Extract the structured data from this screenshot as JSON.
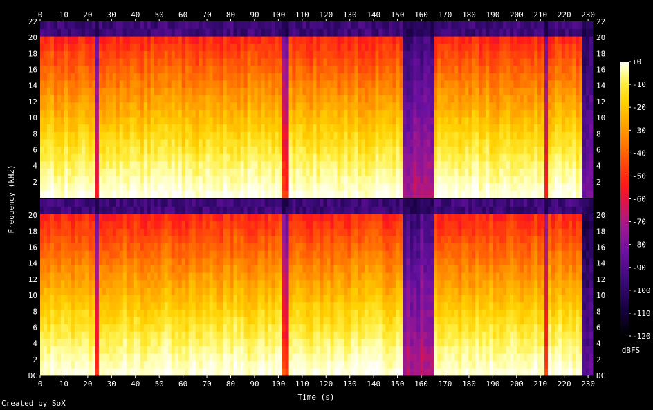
{
  "credit": "Created by SoX",
  "chart_data": {
    "type": "heatmap",
    "title": "",
    "xlabel": "Time (s)",
    "ylabel": "Frequency (kHz)",
    "xlim": [
      0,
      232
    ],
    "ylim": [
      0,
      22
    ],
    "x_ticks": [
      0,
      10,
      20,
      30,
      40,
      50,
      60,
      70,
      80,
      90,
      100,
      110,
      120,
      130,
      140,
      150,
      160,
      170,
      180,
      190,
      200,
      210,
      220,
      230
    ],
    "y_tick_labels_upper": [
      "22",
      "20",
      "18",
      "16",
      "14",
      "12",
      "10",
      "8",
      "6",
      "4",
      "2"
    ],
    "y_tick_labels_lower": [
      "20",
      "18",
      "16",
      "14",
      "12",
      "10",
      "8",
      "6",
      "4",
      "2",
      "DC"
    ],
    "y_tick_values_lower": [
      20,
      18,
      16,
      14,
      12,
      10,
      8,
      6,
      4,
      2,
      0
    ],
    "channels": 2,
    "colorbar": {
      "label": "dBFS",
      "ticks": [
        "+0",
        "-10",
        "-20",
        "-30",
        "-40",
        "-50",
        "-60",
        "-70",
        "-80",
        "-90",
        "-100",
        "-110",
        "-120"
      ],
      "range": [
        -120,
        0
      ]
    },
    "grid": false,
    "legend": "colorbar-right"
  },
  "colors": {
    "background": "#000000",
    "text": "#ffffff",
    "palette": [
      "#000000",
      "#14003c",
      "#3a0a78",
      "#6a10a0",
      "#a01890",
      "#d81450",
      "#ff1818",
      "#ff4a0a",
      "#ff7a00",
      "#ffa800",
      "#ffd000",
      "#ffee40",
      "#ffffb0",
      "#ffffff"
    ]
  }
}
